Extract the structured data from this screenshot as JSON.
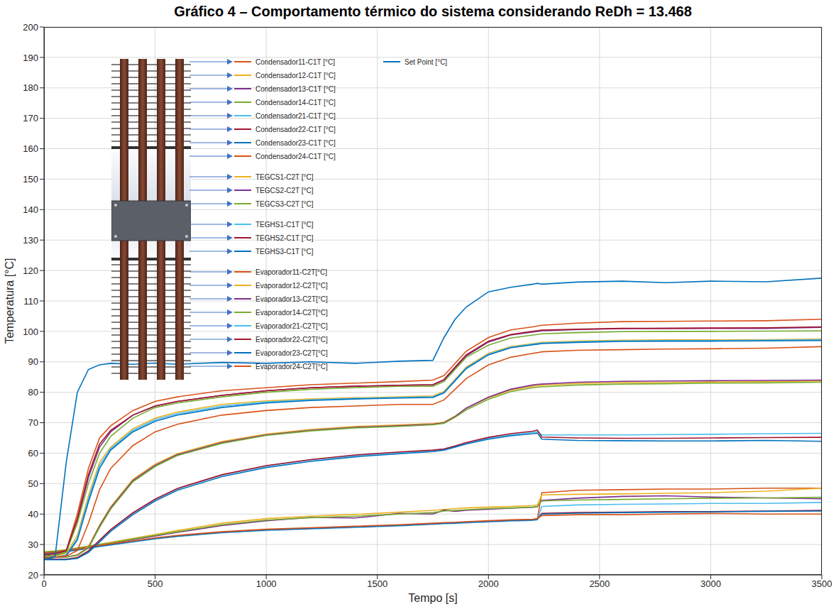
{
  "chart_data": {
    "type": "line",
    "title": "Gráfico 4 – Comportamento térmico do sistema considerando ReDh = 13.468",
    "x_label": "Tempo [s]",
    "y_label": "Temperatura [°C]",
    "xlim": [
      0,
      3500
    ],
    "xticks": [
      0,
      500,
      1000,
      1500,
      2000,
      2500,
      3000,
      3500
    ],
    "ylim": [
      20,
      200
    ],
    "yticks": [
      20,
      30,
      40,
      50,
      60,
      70,
      80,
      90,
      100,
      110,
      120,
      130,
      140,
      150,
      160,
      170,
      180,
      190,
      200
    ],
    "grid": true,
    "legend": "upper left",
    "x": [
      0,
      50,
      100,
      150,
      200,
      250,
      300,
      400,
      500,
      600,
      800,
      1000,
      1200,
      1400,
      1600,
      1750,
      1800,
      1850,
      1900,
      2000,
      2100,
      2200,
      2220,
      2240,
      2400,
      2600,
      2800,
      3000,
      3250,
      3500
    ],
    "series": [
      {
        "name": "Condensador11-C1T [°C]",
        "color": "#D95319",
        "values": [
          27,
          27.3,
          27.8,
          28.3,
          28.9,
          29.5,
          30,
          31,
          32,
          32.8,
          34,
          34.8,
          35.3,
          35.8,
          36.3,
          36.8,
          37,
          37.1,
          37.3,
          37.6,
          37.9,
          38.1,
          38.3,
          47,
          47.8,
          48,
          48.2,
          48.2,
          48.5,
          48.5
        ]
      },
      {
        "name": "Condensador12-C1T [°C]",
        "color": "#EDB120",
        "values": [
          27.6,
          27.9,
          28.3,
          28.9,
          29.5,
          30.1,
          30.7,
          32,
          33.3,
          34.6,
          37,
          38.5,
          39.3,
          39.9,
          40.6,
          41.2,
          41.5,
          41.8,
          42,
          42.3,
          42.5,
          42.8,
          43,
          46.3,
          46.5,
          46.6,
          46.8,
          47,
          47.5,
          48.5
        ]
      },
      {
        "name": "Condensador13-C1T [°C]",
        "color": "#7E2F8E",
        "values": [
          27.4,
          27.7,
          28.1,
          28.7,
          29.3,
          29.9,
          30.4,
          31.6,
          32.8,
          34,
          36.2,
          37.8,
          38.9,
          38.7,
          40.2,
          40,
          41.3,
          40.9,
          41.2,
          41.6,
          41.9,
          42.2,
          42.4,
          44.5,
          45.2,
          45.8,
          46,
          45.6,
          45.3,
          45
        ]
      },
      {
        "name": "Condensador14-C1T [°C]",
        "color": "#77AC30",
        "values": [
          27.5,
          27.8,
          28.2,
          28.8,
          29.4,
          30,
          30.5,
          31.8,
          33,
          34.2,
          36.5,
          38,
          38.8,
          39.3,
          40,
          40.5,
          41,
          41.2,
          41.4,
          41.8,
          42,
          42.3,
          42.5,
          44.3,
          44.6,
          44.8,
          45,
          45.2,
          45.3,
          45.5
        ]
      },
      {
        "name": "Condensador21-C1T [°C]",
        "color": "#4DBEEE",
        "values": [
          26.8,
          27.1,
          27.6,
          28.1,
          28.7,
          29.3,
          29.8,
          30.8,
          31.8,
          32.6,
          33.8,
          34.6,
          35.1,
          35.6,
          36.1,
          36.6,
          36.8,
          36.9,
          37.1,
          37.4,
          37.7,
          37.9,
          38.1,
          42.5,
          43,
          43.2,
          43.3,
          43.5,
          43.5,
          43.8
        ]
      },
      {
        "name": "Condensador22-C1T [°C]",
        "color": "#A2142F",
        "values": [
          27,
          27.3,
          27.8,
          28.3,
          28.9,
          29.5,
          30,
          31,
          32,
          32.8,
          34,
          34.8,
          35.3,
          35.8,
          36.3,
          36.8,
          37,
          37.1,
          37.3,
          37.6,
          37.9,
          38.1,
          38.3,
          40.2,
          40.5,
          40.6,
          40.8,
          40.8,
          41,
          41.2
        ]
      },
      {
        "name": "Condensador23-C1T [°C]",
        "color": "#0072BD",
        "values": [
          27,
          27.3,
          27.8,
          28.3,
          28.9,
          29.5,
          30,
          31,
          32,
          32.8,
          34,
          34.8,
          35.3,
          35.8,
          36.3,
          36.8,
          37,
          37.1,
          37.3,
          37.6,
          37.9,
          38.1,
          38.3,
          40,
          40.3,
          40.5,
          40.6,
          40.7,
          40.9,
          41
        ]
      },
      {
        "name": "Condensador24-C1T [°C]",
        "color": "#D95319",
        "values": [
          27.2,
          27.5,
          28,
          28.5,
          29.1,
          29.7,
          30.2,
          31.2,
          32.2,
          33,
          34.2,
          35,
          35.5,
          36,
          36.5,
          37,
          37.2,
          37.3,
          37.5,
          37.8,
          38.1,
          38.3,
          38.5,
          39.5,
          39.8,
          39.8,
          40,
          40.2,
          40,
          40
        ]
      },
      {
        "name": "TEGCS1-C2T [°C]",
        "color": "#EDB120",
        "values": [
          25.8,
          25.8,
          25.9,
          26.6,
          29.3,
          36.4,
          42.4,
          51.4,
          56.4,
          59.8,
          63.8,
          66.3,
          67.8,
          68.8,
          69.3,
          69.7,
          70.2,
          72.2,
          74.7,
          78.2,
          80.7,
          82,
          82.2,
          82.3,
          82.9,
          83.2,
          83.2,
          83.4,
          83.5,
          83.7
        ]
      },
      {
        "name": "TEGCS2-C2T [°C]",
        "color": "#7E2F8E",
        "values": [
          25.8,
          25.8,
          25.9,
          26.5,
          29,
          36,
          42,
          51,
          56,
          59.5,
          63.5,
          66,
          67.5,
          68.5,
          69,
          69.5,
          70,
          72,
          74.8,
          78.4,
          81,
          82.4,
          82.6,
          82.7,
          83.3,
          83.6,
          83.7,
          83.8,
          83.9,
          84
        ]
      },
      {
        "name": "TEGCS3-C2T [°C]",
        "color": "#77AC30",
        "values": [
          25.8,
          25.8,
          25.9,
          26.4,
          28.8,
          35.6,
          41.6,
          50.6,
          55.6,
          59.2,
          63.2,
          65.8,
          67.3,
          68.3,
          68.8,
          69.3,
          69.8,
          71.8,
          74.2,
          77.7,
          80.2,
          81.5,
          81.7,
          81.8,
          82.4,
          82.7,
          82.8,
          83,
          83.1,
          83.3
        ]
      },
      {
        "name": "TEGHS1-C1T [°C]",
        "color": "#4DBEEE",
        "values": [
          25,
          25,
          25,
          25.6,
          27.8,
          31.3,
          34.8,
          40.3,
          44.8,
          48.3,
          52.8,
          55.8,
          57.8,
          59.2,
          60.2,
          60.9,
          61.3,
          62.3,
          63.3,
          64.9,
          66,
          66.8,
          67.1,
          66,
          66,
          66,
          66.1,
          66.2,
          66.4,
          66.5
        ]
      },
      {
        "name": "TEGHS2-C1T [°C]",
        "color": "#A2142F",
        "values": [
          25.2,
          25.2,
          25.2,
          25.7,
          27.9,
          31.4,
          34.9,
          40.4,
          44.9,
          48.4,
          52.9,
          55.9,
          57.9,
          59.4,
          60.4,
          61,
          61.4,
          62.4,
          63.5,
          65.2,
          66.4,
          67.2,
          67.6,
          65.3,
          65,
          64.9,
          64.9,
          65,
          65.1,
          65.2
        ]
      },
      {
        "name": "TEGHS3-C1T [°C]",
        "color": "#0072BD",
        "values": [
          25,
          25,
          25,
          25.4,
          27.4,
          30.8,
          34.3,
          39.8,
          44.3,
          47.8,
          52.3,
          55.3,
          57.3,
          58.8,
          59.8,
          60.5,
          61,
          62,
          63,
          64.6,
          65.7,
          66.4,
          66.6,
          64.6,
          64.2,
          64.1,
          64,
          64,
          64.2,
          63.9
        ]
      },
      {
        "name": "Evaporador11-C2T[°C]",
        "color": "#D95319",
        "values": [
          26,
          26.5,
          28,
          40,
          55,
          65,
          69,
          74,
          77,
          78.5,
          80.5,
          81.5,
          82.5,
          83,
          83.5,
          84,
          85.5,
          89.5,
          93.5,
          98,
          100.5,
          101.5,
          101.8,
          102,
          102.7,
          103.2,
          103.3,
          103.4,
          103.5,
          104
        ]
      },
      {
        "name": "Evaporador12-C2T[°C]",
        "color": "#EDB120",
        "values": [
          26,
          26.3,
          27,
          33,
          46,
          57,
          62,
          68,
          71.5,
          73.5,
          76,
          77.2,
          77.8,
          78.2,
          78.5,
          78.8,
          80.3,
          84.3,
          88.3,
          92.8,
          95,
          96,
          96.2,
          96.4,
          96.8,
          97.1,
          97.2,
          97.2,
          97.3,
          97.5
        ]
      },
      {
        "name": "Evaporador13-C2T[°C]",
        "color": "#7E2F8E",
        "values": [
          26,
          26.5,
          27.5,
          38,
          52,
          62,
          67,
          72.5,
          75.5,
          77,
          79,
          80.5,
          81.5,
          82,
          82.3,
          82.5,
          84,
          88,
          92,
          96.5,
          98.8,
          99.8,
          100,
          100.2,
          100.6,
          100.9,
          101,
          101,
          101,
          101.3
        ]
      },
      {
        "name": "Evaporador14-C2T[°C]",
        "color": "#77AC30",
        "values": [
          26,
          26.5,
          27.5,
          37,
          50,
          60,
          65.5,
          71.5,
          75,
          76.5,
          78.5,
          80,
          81,
          81.5,
          82,
          82,
          83.5,
          87.5,
          91.5,
          95.5,
          97.8,
          98.8,
          99,
          99.2,
          99.6,
          99.9,
          100,
          100,
          100.1,
          100.2
        ]
      },
      {
        "name": "Evaporador21-C2T[°C]",
        "color": "#4DBEEE",
        "values": [
          25.5,
          25.8,
          26.5,
          32,
          45,
          56,
          61.5,
          67.5,
          71,
          73,
          75.5,
          76.8,
          77.5,
          78,
          78.3,
          78.5,
          80,
          84,
          88,
          92.5,
          94.8,
          95.8,
          96,
          96.2,
          96.6,
          96.9,
          97,
          97,
          97.1,
          97.3
        ]
      },
      {
        "name": "Evaporador22-C2T[°C]",
        "color": "#A2142F",
        "values": [
          26.5,
          27,
          28,
          38.5,
          53,
          63,
          67.5,
          72.5,
          75.5,
          77,
          79,
          80.5,
          81.5,
          82,
          82.3,
          82.5,
          84.2,
          88.3,
          92.3,
          96.8,
          99,
          100,
          100.2,
          100.4,
          100.7,
          101,
          101,
          101.1,
          101.2,
          101.5
        ]
      },
      {
        "name": "Evaporador23-C2T[°C]",
        "color": "#0072BD",
        "values": [
          25.5,
          25.8,
          26.3,
          31.5,
          44,
          55,
          61,
          67,
          70.5,
          72.5,
          75,
          76.5,
          77.3,
          77.8,
          78.1,
          78.3,
          79.8,
          83.8,
          87.8,
          92.3,
          94.6,
          95.6,
          95.8,
          96,
          96.4,
          96.7,
          96.8,
          96.8,
          96.9,
          97
        ]
      },
      {
        "name": "Evaporador24-C2T[°C]",
        "color": "#D95319",
        "values": [
          25.5,
          25.8,
          26.2,
          28,
          37,
          48,
          55,
          62.5,
          67,
          69.5,
          72.5,
          74,
          75,
          75.5,
          76,
          76,
          77.5,
          81,
          84.5,
          89,
          91.5,
          92.8,
          93,
          93.3,
          93.8,
          94,
          94.2,
          94.3,
          94.5,
          95
        ]
      },
      {
        "name": "Set Point [°C]",
        "color": "#0072BD",
        "values": [
          25,
          26,
          57,
          80,
          87.5,
          89,
          89.5,
          89.2,
          89.6,
          89.2,
          89.8,
          89.5,
          90,
          89.5,
          90.2,
          90.5,
          98,
          104,
          108,
          113,
          114.5,
          115.5,
          115.8,
          115.5,
          116.2,
          116.5,
          116,
          116.5,
          116.3,
          117.5
        ]
      }
    ]
  }
}
